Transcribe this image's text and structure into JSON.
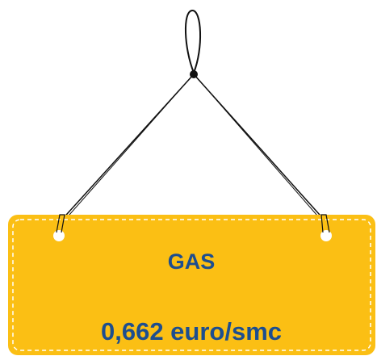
{
  "sign": {
    "title": "GAS",
    "price": "0,662 euro/smc"
  }
}
